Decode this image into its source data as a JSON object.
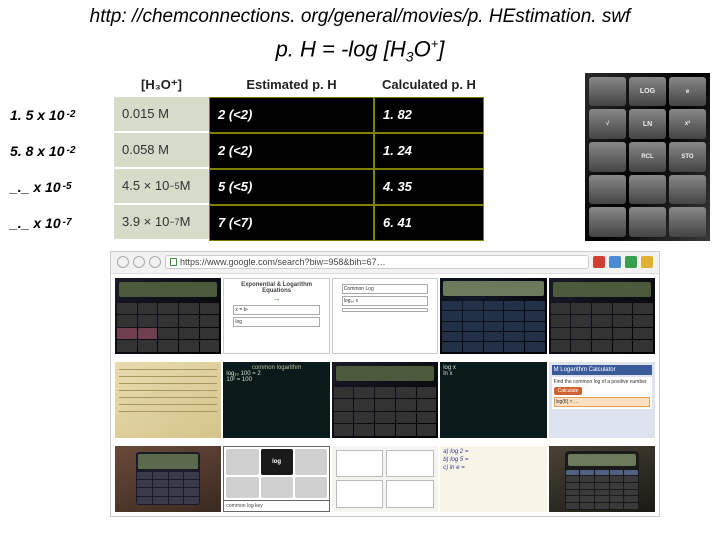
{
  "header": {
    "url": "http: //chemconnections. org/general/movies/p. HEstimation. swf",
    "formula_prefix": "p. H = -log [H",
    "formula_sub": "3",
    "formula_mid": "O",
    "formula_sup": "+",
    "formula_suffix": "]"
  },
  "left_concentrations": [
    {
      "coef": "1. 5 x 10",
      "exp": "-2"
    },
    {
      "coef": "5. 8 x 10",
      "exp": "-2"
    },
    {
      "coef": "_._  x 10",
      "exp": "-5"
    },
    {
      "coef": "_._  x 10",
      "exp": "-7"
    }
  ],
  "table": {
    "headers": {
      "h3o": "[H₃O⁺]",
      "est": "Estimated p. H",
      "calc": "Calculated p. H"
    },
    "rows": [
      {
        "h3o": "0.015 M",
        "est": "2 (<2)",
        "calc": "1. 82"
      },
      {
        "h3o": "0.058 M",
        "est": "2 (<2)",
        "calc": "1. 24"
      },
      {
        "h3o_coef": "4.5 × 10",
        "h3o_exp": "−5",
        "h3o_unit": " M",
        "est": "5 (<5)",
        "calc": "4. 35"
      },
      {
        "h3o_coef": "3.9 × 10",
        "h3o_exp": "−7",
        "h3o_unit": " M",
        "est": "7 (<7)",
        "calc": "6. 41"
      }
    ]
  },
  "right_calc_keys": [
    "",
    "LOG",
    "e",
    "√",
    "LN",
    "x²",
    "",
    "RCL",
    "STO",
    "",
    "",
    "",
    "",
    "",
    ""
  ],
  "browser": {
    "url_text": "https://www.google.com/search?biw=958&bih=67…",
    "ext_colors": [
      "#d04030",
      "#4a8ad0",
      "#3aa050",
      "#e0b030"
    ]
  },
  "collage": {
    "wb_title": "Exponential & Logarithm Equations",
    "bb_title": "common logarithm",
    "we_title": "M Logarithm Calculator",
    "we_line1": "Find the common log of a positive number",
    "we_btn": "Calculate",
    "log_key": "log"
  }
}
